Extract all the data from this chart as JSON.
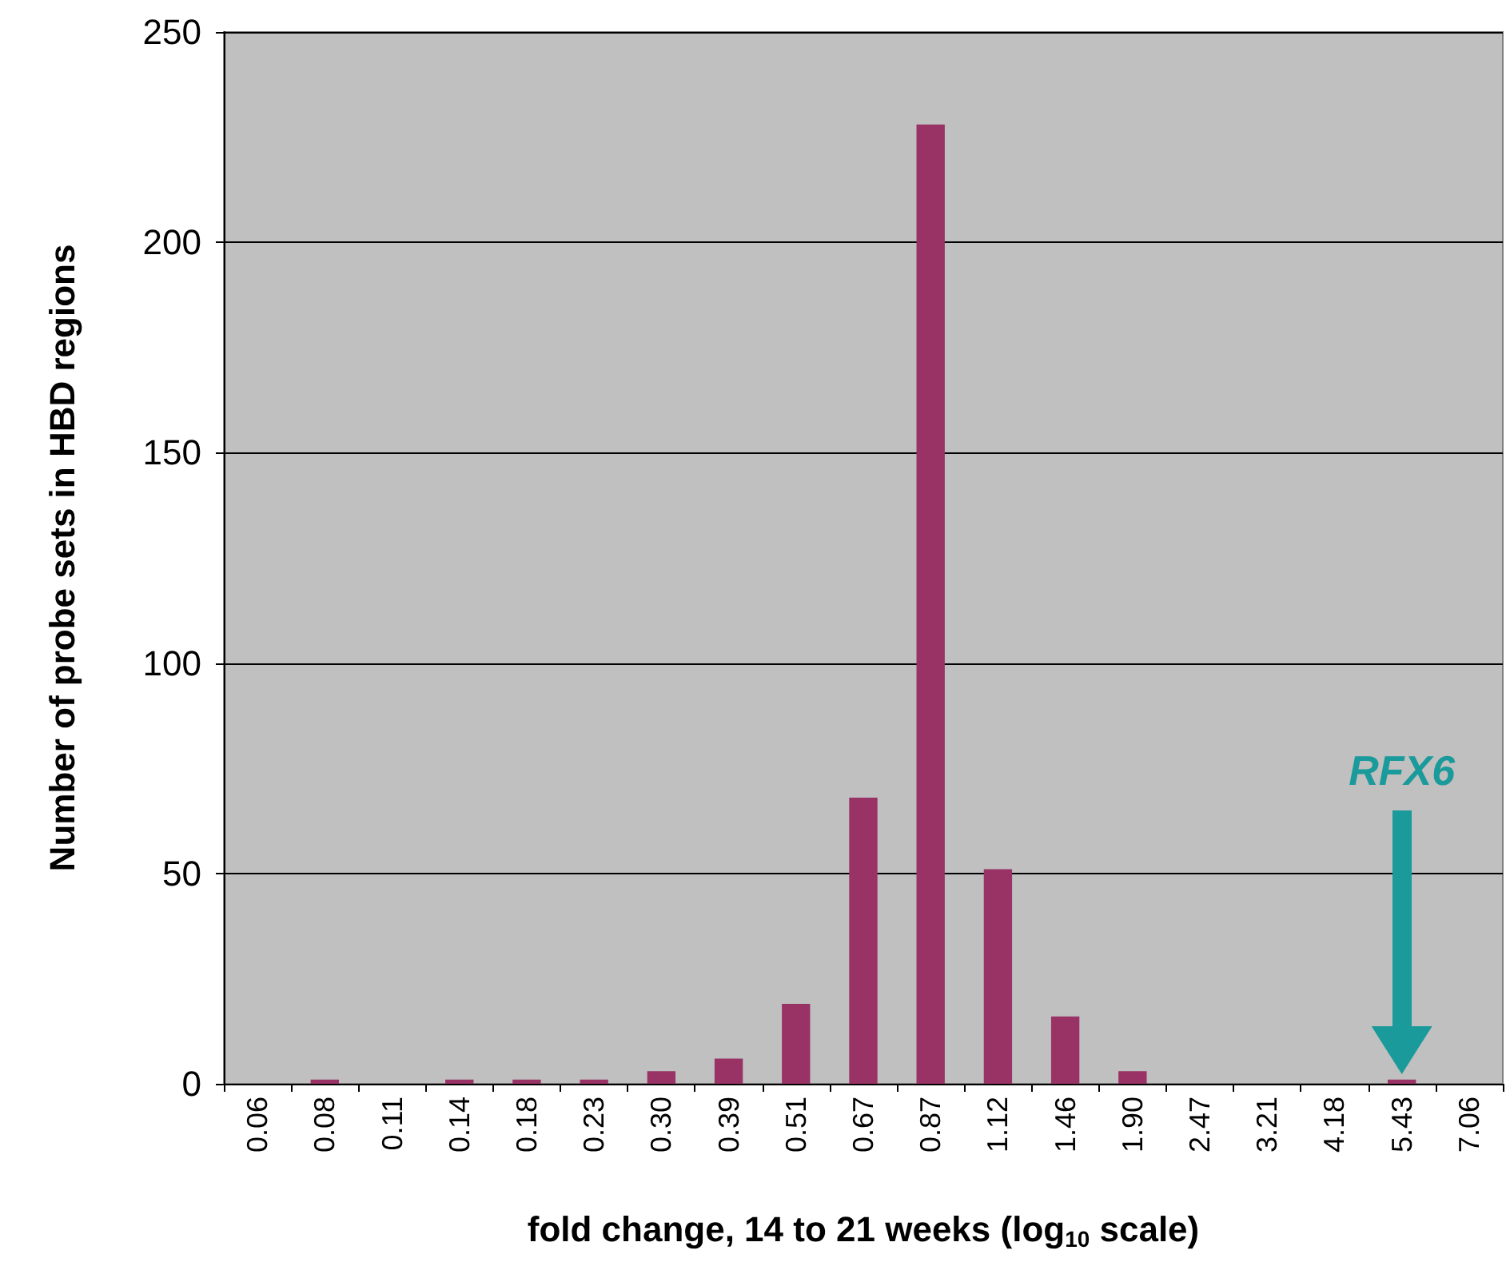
{
  "chart_data": {
    "type": "bar",
    "xlabel": "fold change, 14 to 21 weeks (log$_{10}$ scale)",
    "ylabel": "Number of probe sets in HBD regions",
    "categories": [
      "0.06",
      "0.08",
      "0.11",
      "0.14",
      "0.18",
      "0.23",
      "0.30",
      "0.39",
      "0.51",
      "0.67",
      "0.87",
      "1.12",
      "1.46",
      "1.90",
      "2.47",
      "3.21",
      "4.18",
      "5.43",
      "7.06"
    ],
    "values": [
      0,
      1,
      0,
      1,
      1,
      1,
      3,
      6,
      19,
      68,
      228,
      51,
      16,
      3,
      0,
      0,
      0,
      1,
      0
    ],
    "color": "#993366",
    "ylim": [
      0,
      250
    ],
    "yticks": [
      0,
      50,
      100,
      150,
      200,
      250
    ],
    "grid": "y",
    "annotations": [
      {
        "text": "RFX6",
        "x": "5.43",
        "y": 8
      }
    ]
  }
}
